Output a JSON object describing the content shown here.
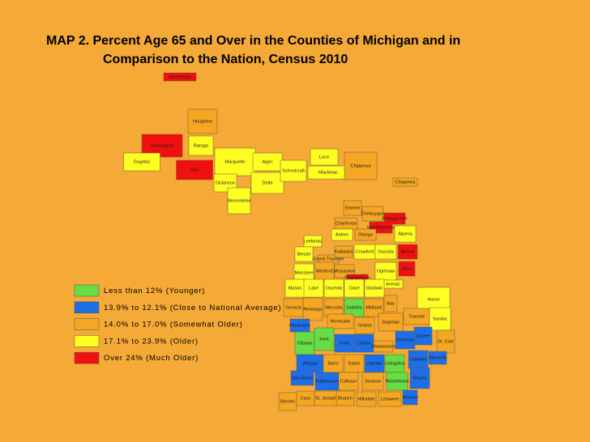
{
  "title": [
    "MAP 2.  Percent Age 65 and Over in the Counties of Michigan and in",
    "Comparison to the Nation, Census 2010"
  ],
  "legend": [
    {
      "label": "Less than 12% (Younger)",
      "color": "#66dd44"
    },
    {
      "label": "13.9% to 12.1% (Close to National Average)",
      "color": "#1e6ee8"
    },
    {
      "label": "14.0% to 17.0% (Somewhat Older)",
      "color": "#f5a623"
    },
    {
      "label": "17.1% to 23.9% (Older)",
      "color": "#ffff22"
    },
    {
      "label": "Over 24% (Much Older)",
      "color": "#f01010"
    }
  ],
  "counties": [
    {
      "name": "Keweenaw",
      "color": "#f01010"
    },
    {
      "name": "Houghton",
      "color": "#f5a623"
    },
    {
      "name": "Ontonagon",
      "color": "#f01010"
    },
    {
      "name": "Gogebic",
      "color": "#ffff22"
    },
    {
      "name": "Baraga",
      "color": "#ffff22"
    },
    {
      "name": "Iron",
      "color": "#f01010"
    },
    {
      "name": "Marquette",
      "color": "#ffff22"
    },
    {
      "name": "Dickinson",
      "color": "#ffff22"
    },
    {
      "name": "Menominee",
      "color": "#ffff22"
    },
    {
      "name": "Alger",
      "color": "#ffff22"
    },
    {
      "name": "Delta",
      "color": "#ffff22"
    },
    {
      "name": "Schoolcraft",
      "color": "#ffff22"
    },
    {
      "name": "Luce",
      "color": "#ffff22"
    },
    {
      "name": "Mackinac",
      "color": "#ffff22"
    },
    {
      "name": "Chippewa",
      "color": "#f5a623"
    },
    {
      "name": "Chippewa",
      "color": "#f5a623"
    },
    {
      "name": "Emmet",
      "color": "#f5a623"
    },
    {
      "name": "Cheboygan",
      "color": "#f5a623"
    },
    {
      "name": "Presque Isle",
      "color": "#f01010"
    },
    {
      "name": "Charlevoix",
      "color": "#f5a623"
    },
    {
      "name": "Montmorency",
      "color": "#f01010"
    },
    {
      "name": "Alpena",
      "color": "#ffff22"
    },
    {
      "name": "Antrim",
      "color": "#ffff22"
    },
    {
      "name": "Otsego",
      "color": "#f5a623"
    },
    {
      "name": "Leelanau",
      "color": "#ffff22"
    },
    {
      "name": "Benzie",
      "color": "#ffff22"
    },
    {
      "name": "Grand Traverse",
      "color": "#f5a623"
    },
    {
      "name": "Kalkaska",
      "color": "#f5a623"
    },
    {
      "name": "Crawford",
      "color": "#ffff22"
    },
    {
      "name": "Oscoda",
      "color": "#ffff22"
    },
    {
      "name": "Alcona",
      "color": "#f01010"
    },
    {
      "name": "Manistee",
      "color": "#ffff22"
    },
    {
      "name": "Wexford",
      "color": "#f5a623"
    },
    {
      "name": "Missaukee",
      "color": "#f5a623"
    },
    {
      "name": "Roscommon",
      "color": "#f01010"
    },
    {
      "name": "Ogemaw",
      "color": "#ffff22"
    },
    {
      "name": "Iosco",
      "color": "#f01010"
    },
    {
      "name": "Arenac",
      "color": "#ffff22"
    },
    {
      "name": "Mason",
      "color": "#ffff22"
    },
    {
      "name": "Lake",
      "color": "#ffff22"
    },
    {
      "name": "Osceola",
      "color": "#ffff22"
    },
    {
      "name": "Clare",
      "color": "#ffff22"
    },
    {
      "name": "Gladwin",
      "color": "#ffff22"
    },
    {
      "name": "Huron",
      "color": "#ffff22"
    },
    {
      "name": "Bay",
      "color": "#f5a623"
    },
    {
      "name": "Oceana",
      "color": "#f5a623"
    },
    {
      "name": "Newaygo",
      "color": "#f5a623"
    },
    {
      "name": "Mecosta",
      "color": "#f5a623"
    },
    {
      "name": "Isabella",
      "color": "#66dd44"
    },
    {
      "name": "Midland",
      "color": "#f5a623"
    },
    {
      "name": "Tuscola",
      "color": "#f5a623"
    },
    {
      "name": "Sanilac",
      "color": "#ffff22"
    },
    {
      "name": "Muskegon",
      "color": "#1e6ee8"
    },
    {
      "name": "Montcalm",
      "color": "#f5a623"
    },
    {
      "name": "Gratiot",
      "color": "#f5a623"
    },
    {
      "name": "Saginaw",
      "color": "#f5a623"
    },
    {
      "name": "Lapeer",
      "color": "#1e6ee8"
    },
    {
      "name": "Ottawa",
      "color": "#66dd44"
    },
    {
      "name": "Kent",
      "color": "#66dd44"
    },
    {
      "name": "Ionia",
      "color": "#1e6ee8"
    },
    {
      "name": "Clinton",
      "color": "#1e6ee8"
    },
    {
      "name": "Shiawassee",
      "color": "#f5a623"
    },
    {
      "name": "Genesee",
      "color": "#1e6ee8"
    },
    {
      "name": "St. Clair",
      "color": "#f5a623"
    },
    {
      "name": "Oakland",
      "color": "#1e6ee8"
    },
    {
      "name": "Macomb",
      "color": "#1e6ee8"
    },
    {
      "name": "Allegan",
      "color": "#1e6ee8"
    },
    {
      "name": "Barry",
      "color": "#f5a623"
    },
    {
      "name": "Eaton",
      "color": "#f5a623"
    },
    {
      "name": "Ingham",
      "color": "#1e6ee8"
    },
    {
      "name": "Livingston",
      "color": "#66dd44"
    },
    {
      "name": "Van Buren",
      "color": "#1e6ee8"
    },
    {
      "name": "Kalamazoo",
      "color": "#1e6ee8"
    },
    {
      "name": "Calhoun",
      "color": "#f5a623"
    },
    {
      "name": "Jackson",
      "color": "#f5a623"
    },
    {
      "name": "Washtenaw",
      "color": "#66dd44"
    },
    {
      "name": "Wayne",
      "color": "#1e6ee8"
    },
    {
      "name": "Berrien",
      "color": "#f5a623"
    },
    {
      "name": "Cass",
      "color": "#f5a623"
    },
    {
      "name": "St. Joseph",
      "color": "#f5a623"
    },
    {
      "name": "Branch",
      "color": "#f5a623"
    },
    {
      "name": "Hillsdale",
      "color": "#f5a623"
    },
    {
      "name": "Lenawee",
      "color": "#f5a623"
    },
    {
      "name": "Monroe",
      "color": "#1e6ee8"
    }
  ]
}
